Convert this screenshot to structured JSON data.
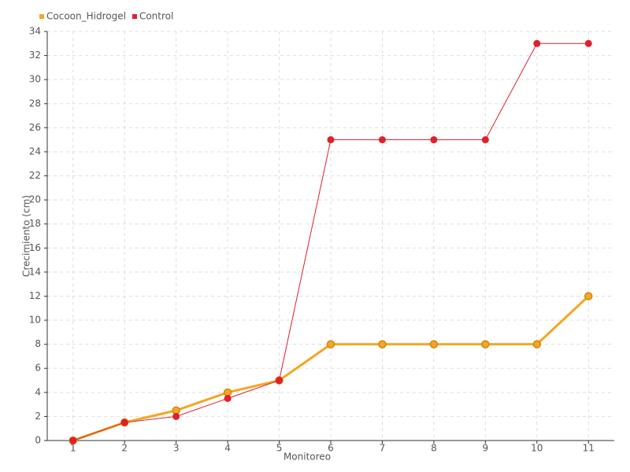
{
  "chart_data": {
    "type": "line",
    "x_label": "Monitoreo",
    "y_label": "Crecimiento (cm)",
    "categories": [
      "1",
      "2",
      "3",
      "4",
      "5",
      "6",
      "7",
      "8",
      "9",
      "10",
      "11"
    ],
    "series": [
      {
        "name": "Cocoon_Hidrogel",
        "color": "#f5a623",
        "values": [
          0,
          1.5,
          2.5,
          4,
          5,
          8,
          8,
          8,
          8,
          8,
          12
        ]
      },
      {
        "name": "Control",
        "color": "#e0202a",
        "values": [
          0,
          1.5,
          2,
          3.5,
          5,
          25,
          25,
          25,
          25,
          33,
          33
        ]
      }
    ],
    "ylim": [
      0,
      34
    ],
    "yticks": [
      0,
      2,
      4,
      6,
      8,
      10,
      12,
      14,
      16,
      18,
      20,
      22,
      24,
      26,
      28,
      30,
      32,
      34
    ],
    "grid": true,
    "legend": "top-left"
  }
}
